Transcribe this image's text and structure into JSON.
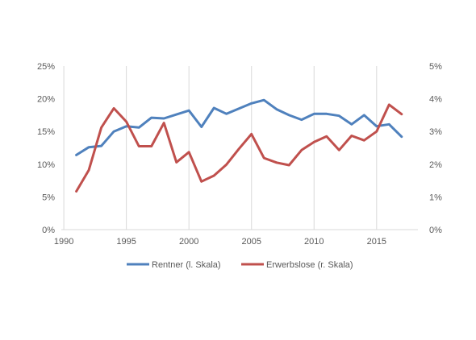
{
  "chart_data": {
    "type": "line",
    "title": "",
    "xlabel": "",
    "ylabel": "",
    "x": [
      1991,
      1992,
      1993,
      1994,
      1995,
      1996,
      1997,
      1998,
      1999,
      2000,
      2001,
      2002,
      2003,
      2004,
      2005,
      2006,
      2007,
      2008,
      2009,
      2010,
      2011,
      2012,
      2013,
      2014,
      2015,
      2016,
      2017
    ],
    "xticks": [
      "1990",
      "1995",
      "2000",
      "2005",
      "2010",
      "2015"
    ],
    "xlim": [
      1989.8,
      2018.3
    ],
    "left_axis": {
      "ticks": [
        "0%",
        "5%",
        "10%",
        "15%",
        "20%",
        "25%"
      ],
      "ylim": [
        0,
        25
      ]
    },
    "right_axis": {
      "ticks": [
        "0%",
        "1%",
        "2%",
        "3%",
        "4%",
        "5%"
      ],
      "ylim": [
        0,
        5
      ]
    },
    "grid": "vertical",
    "legend_position": "bottom",
    "series": [
      {
        "name": "Rentner (l. Skala)",
        "axis": "left",
        "color": "#4f81bd",
        "values": [
          11.4,
          12.6,
          12.8,
          15.0,
          15.8,
          15.6,
          17.1,
          17.0,
          17.6,
          18.2,
          15.7,
          18.6,
          17.7,
          18.5,
          19.3,
          19.8,
          18.4,
          17.5,
          16.8,
          17.7,
          17.7,
          17.4,
          16.1,
          17.5,
          15.8,
          16.1,
          14.2
        ]
      },
      {
        "name": "Erwerbslose (r. Skala)",
        "axis": "right",
        "color": "#c0504d",
        "values": [
          1.17,
          1.82,
          3.12,
          3.71,
          3.3,
          2.55,
          2.55,
          3.26,
          2.06,
          2.37,
          1.47,
          1.65,
          1.99,
          2.47,
          2.92,
          2.19,
          2.05,
          1.97,
          2.43,
          2.68,
          2.85,
          2.43,
          2.87,
          2.73,
          3.0,
          3.82,
          3.53
        ]
      }
    ]
  }
}
